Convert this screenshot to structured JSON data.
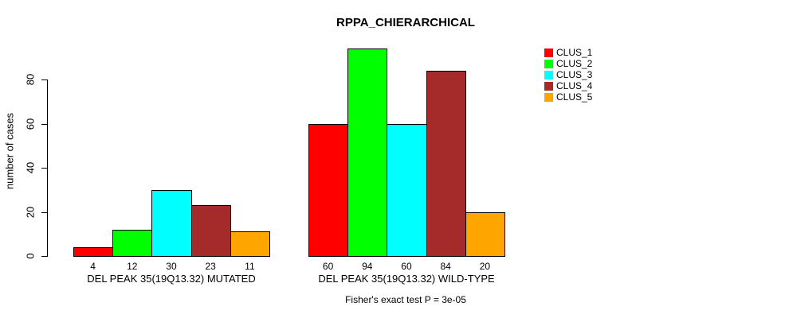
{
  "chart_data": {
    "type": "bar",
    "title": "RPPA_CHIERARCHICAL",
    "xlabel": "",
    "ylabel": "number of cases",
    "categories": [
      "DEL PEAK 35(19Q13.32) MUTATED",
      "DEL PEAK 35(19Q13.32) WILD-TYPE"
    ],
    "series": [
      {
        "name": "CLUS_1",
        "color": "#FF0000",
        "values": [
          4,
          60
        ]
      },
      {
        "name": "CLUS_2",
        "color": "#00FF00",
        "values": [
          12,
          94
        ]
      },
      {
        "name": "CLUS_3",
        "color": "#00FFFF",
        "values": [
          30,
          60
        ]
      },
      {
        "name": "CLUS_4",
        "color": "#A52A2A",
        "values": [
          23,
          84
        ]
      },
      {
        "name": "CLUS_5",
        "color": "#FFA500",
        "values": [
          11,
          20
        ]
      }
    ],
    "yticks": [
      0,
      20,
      40,
      60,
      80
    ],
    "ylim": [
      0,
      94
    ],
    "grid": false,
    "legend_position": "right",
    "bar_value_labels": "below bars",
    "footnote": "Fisher's exact test P = 3e-05",
    "background_color": "#ffffff",
    "text_color": "#000000"
  }
}
